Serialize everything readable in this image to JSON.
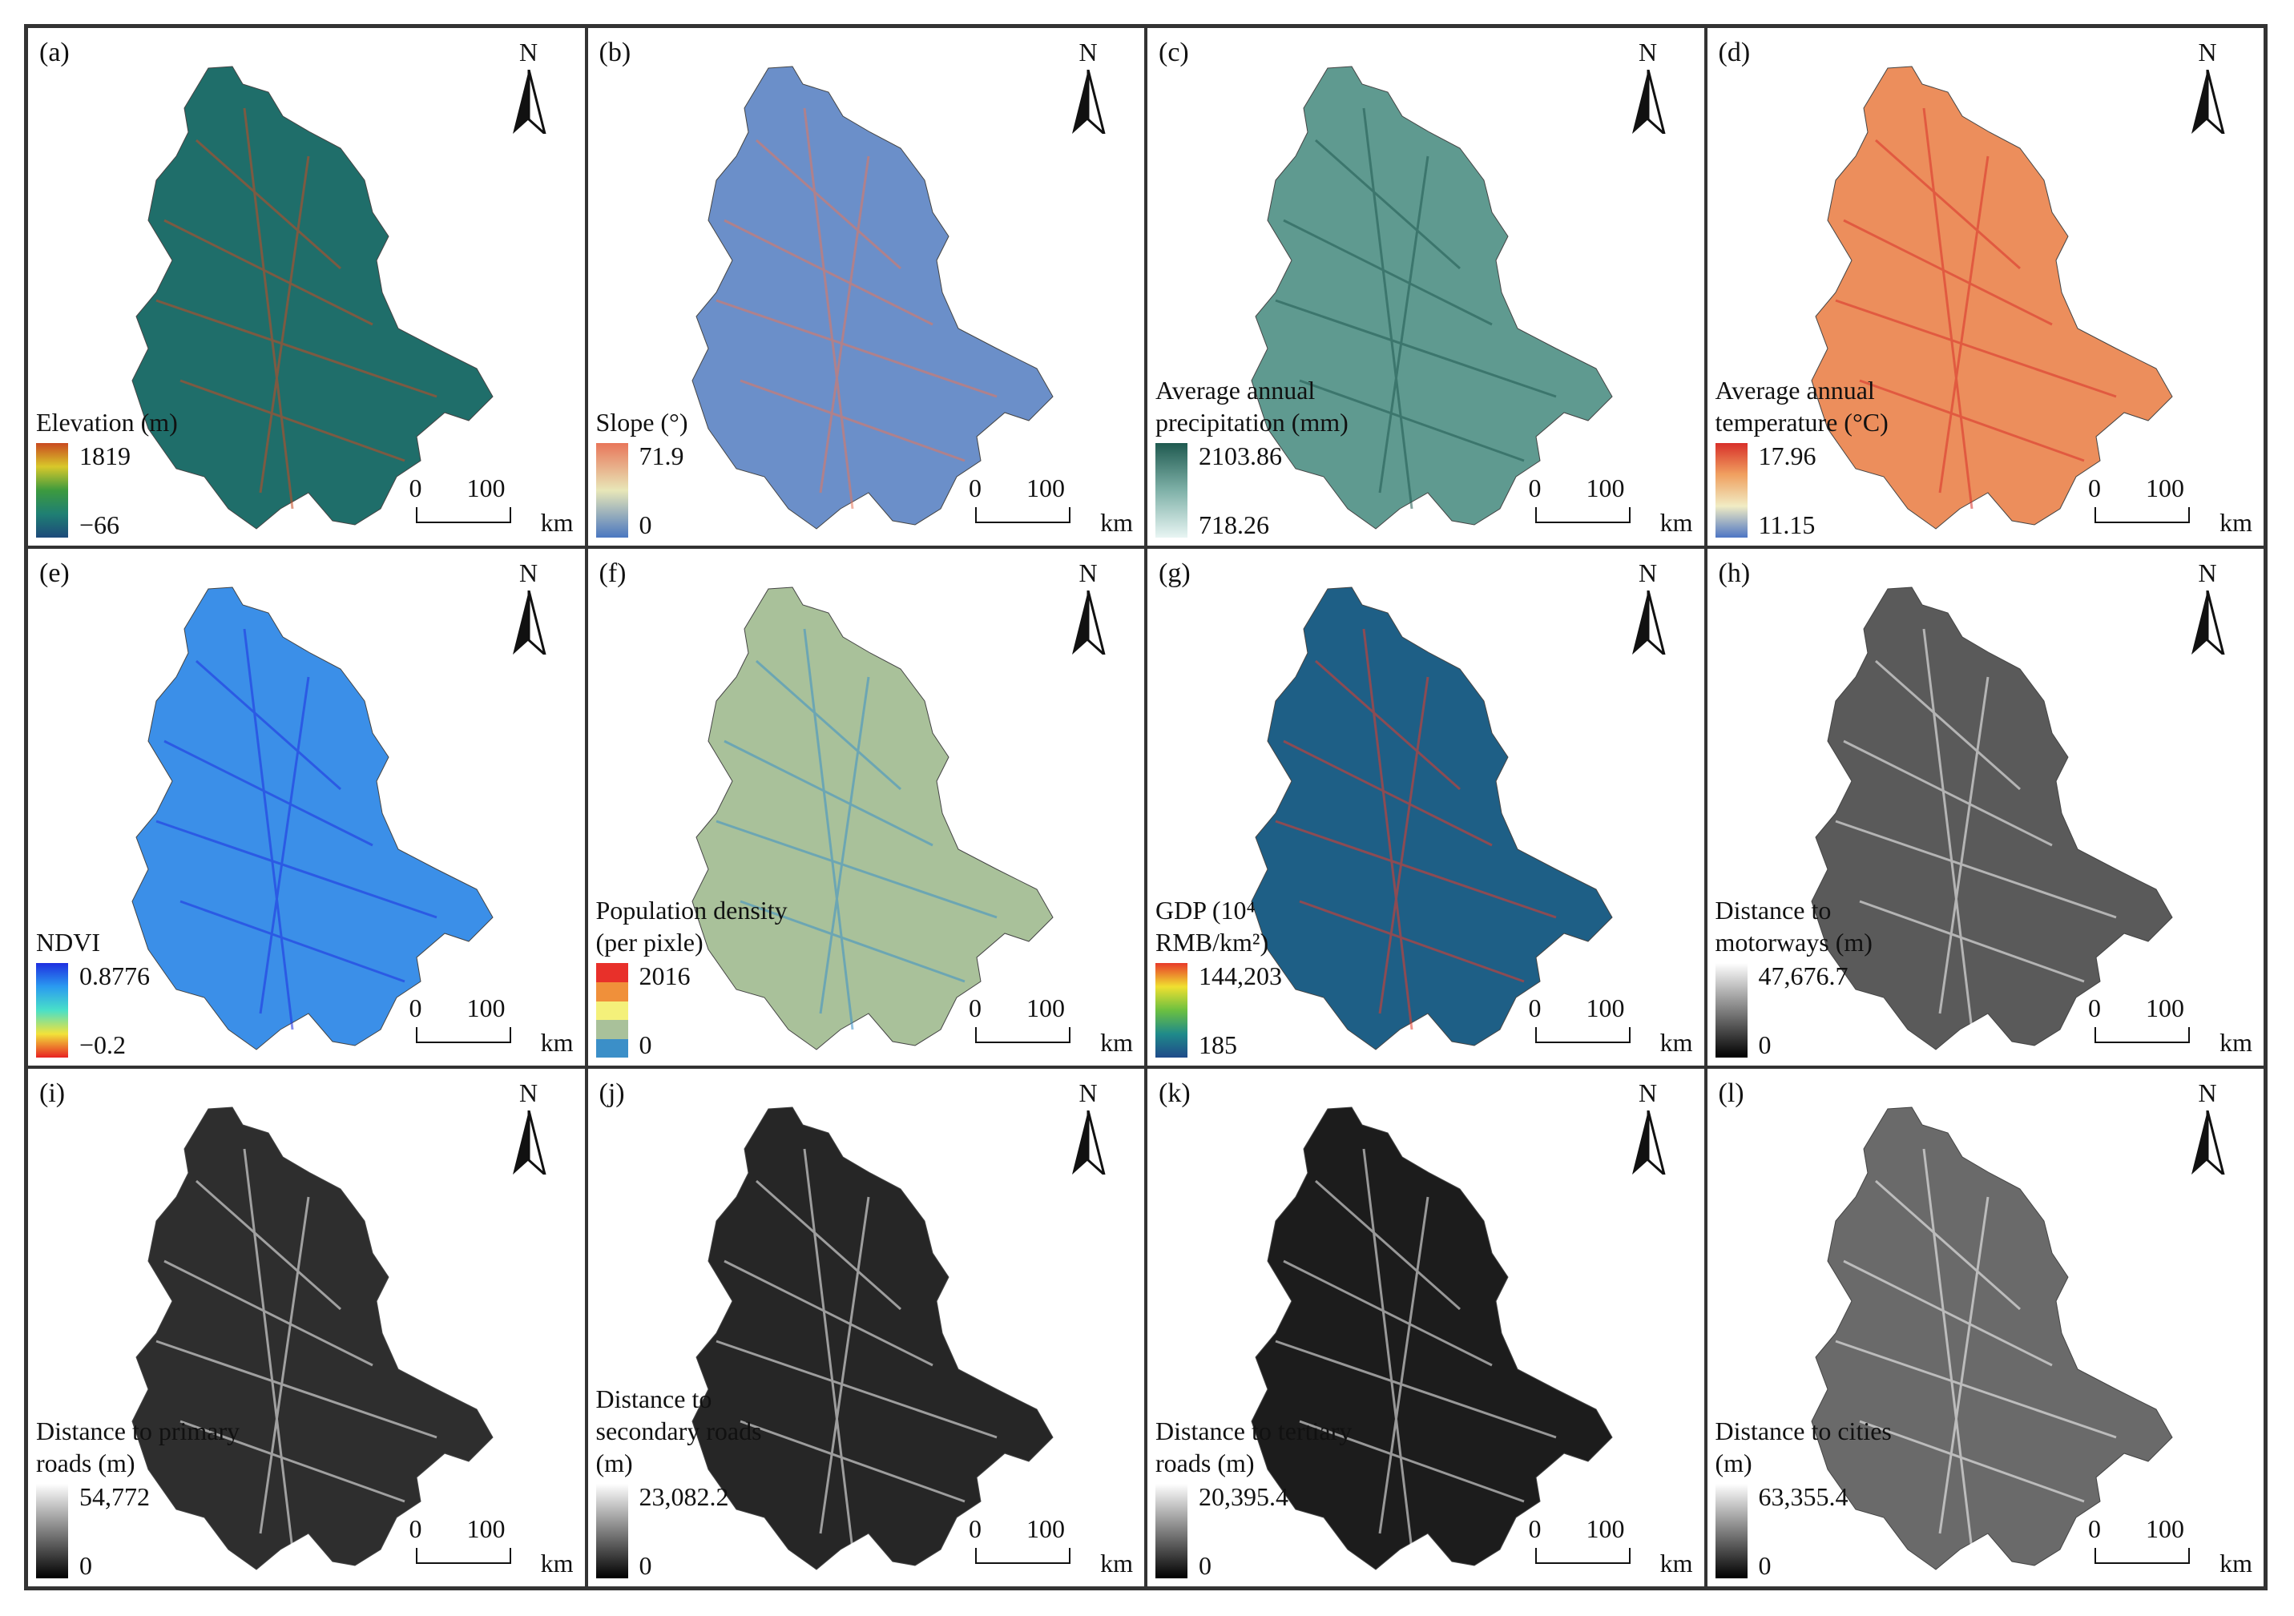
{
  "panels": [
    {
      "label": "(a)",
      "north": "N",
      "legend_title": "Elevation (m)",
      "legend_max": "1819",
      "legend_min": "−66",
      "scale_0": "0",
      "scale_100": "100",
      "scale_unit": "km",
      "colors": [
        "#1d4a7a",
        "#1f7f73",
        "#3d9a3e",
        "#d8c82a",
        "#c94a20"
      ],
      "fill": "#1f6e6a",
      "type": "ramp"
    },
    {
      "label": "(b)",
      "north": "N",
      "legend_title": "Slope (°)",
      "legend_max": "71.9",
      "legend_min": "0",
      "scale_0": "0",
      "scale_100": "100",
      "scale_unit": "km",
      "colors": [
        "#4a77c0",
        "#e8e7b8",
        "#e8765a"
      ],
      "fill": "#6b8fc9",
      "type": "ramp"
    },
    {
      "label": "(c)",
      "north": "N",
      "legend_title": "Average annual precipitation (mm)",
      "legend_max": "2103.86",
      "legend_min": "718.26",
      "scale_0": "0",
      "scale_100": "100",
      "scale_unit": "km",
      "colors": [
        "#e8f5f3",
        "#7fb1a8",
        "#1f5a50"
      ],
      "fill": "#5f9a90",
      "type": "ramp"
    },
    {
      "label": "(d)",
      "north": "N",
      "legend_title": "Average annual temperature (°C)",
      "legend_max": "17.96",
      "legend_min": "11.15",
      "scale_0": "0",
      "scale_100": "100",
      "scale_unit": "km",
      "colors": [
        "#4e75c4",
        "#f1ecc4",
        "#f0a060",
        "#d8302a"
      ],
      "fill": "#ec8e5c",
      "type": "ramp"
    },
    {
      "label": "(e)",
      "north": "N",
      "legend_title": "NDVI",
      "legend_max": "0.8776",
      "legend_min": "−0.2",
      "scale_0": "0",
      "scale_100": "100",
      "scale_unit": "km",
      "colors": [
        "#e82222",
        "#f2e23a",
        "#49e0c8",
        "#2a9bf0",
        "#1f2fe0"
      ],
      "fill": "#3b8fe8",
      "type": "ramp"
    },
    {
      "label": "(f)",
      "north": "N",
      "legend_title": "Population density (per pixle)",
      "legend_max": "2016",
      "legend_min": "0",
      "scale_0": "0",
      "scale_100": "100",
      "scale_unit": "km",
      "colors": [
        "#e8302a",
        "#f0903a",
        "#f4f07a",
        "#a9c19a",
        "#3b8fc8"
      ],
      "fill": "#a9c19a",
      "type": "classes"
    },
    {
      "label": "(g)",
      "north": "N",
      "legend_title": "GDP (10⁴ RMB/km²)",
      "legend_max": "144,203",
      "legend_min": "185",
      "scale_0": "0",
      "scale_100": "100",
      "scale_unit": "km",
      "colors": [
        "#1f4a8a",
        "#1f8a8a",
        "#6cc040",
        "#f0e030",
        "#e83a2a"
      ],
      "fill": "#1e5f86",
      "type": "ramp"
    },
    {
      "label": "(h)",
      "north": "N",
      "legend_title": "Distance to motorways (m)",
      "legend_max": "47,676.7",
      "legend_min": "0",
      "scale_0": "0",
      "scale_100": "100",
      "scale_unit": "km",
      "colors": [
        "#000000",
        "#ffffff"
      ],
      "fill": "#5a5a5a",
      "type": "ramp"
    },
    {
      "label": "(i)",
      "north": "N",
      "legend_title": "Distance to primary roads (m)",
      "legend_max": "54,772",
      "legend_min": "0",
      "scale_0": "0",
      "scale_100": "100",
      "scale_unit": "km",
      "colors": [
        "#000000",
        "#ffffff"
      ],
      "fill": "#2e2e2e",
      "type": "ramp"
    },
    {
      "label": "(j)",
      "north": "N",
      "legend_title": "Distance to secondary roads (m)",
      "legend_max": "23,082.2",
      "legend_min": "0",
      "scale_0": "0",
      "scale_100": "100",
      "scale_unit": "km",
      "colors": [
        "#000000",
        "#ffffff"
      ],
      "fill": "#262626",
      "type": "ramp"
    },
    {
      "label": "(k)",
      "north": "N",
      "legend_title": "Distance to tertiary roads (m)",
      "legend_max": "20,395.4",
      "legend_min": "0",
      "scale_0": "0",
      "scale_100": "100",
      "scale_unit": "km",
      "colors": [
        "#000000",
        "#ffffff"
      ],
      "fill": "#1c1c1c",
      "type": "ramp"
    },
    {
      "label": "(l)",
      "north": "N",
      "legend_title": "Distance to cities (m)",
      "legend_max": "63,355.4",
      "legend_min": "0",
      "scale_0": "0",
      "scale_100": "100",
      "scale_unit": "km",
      "colors": [
        "#000000",
        "#ffffff"
      ],
      "fill": "#6a6a6a",
      "type": "ramp"
    }
  ]
}
